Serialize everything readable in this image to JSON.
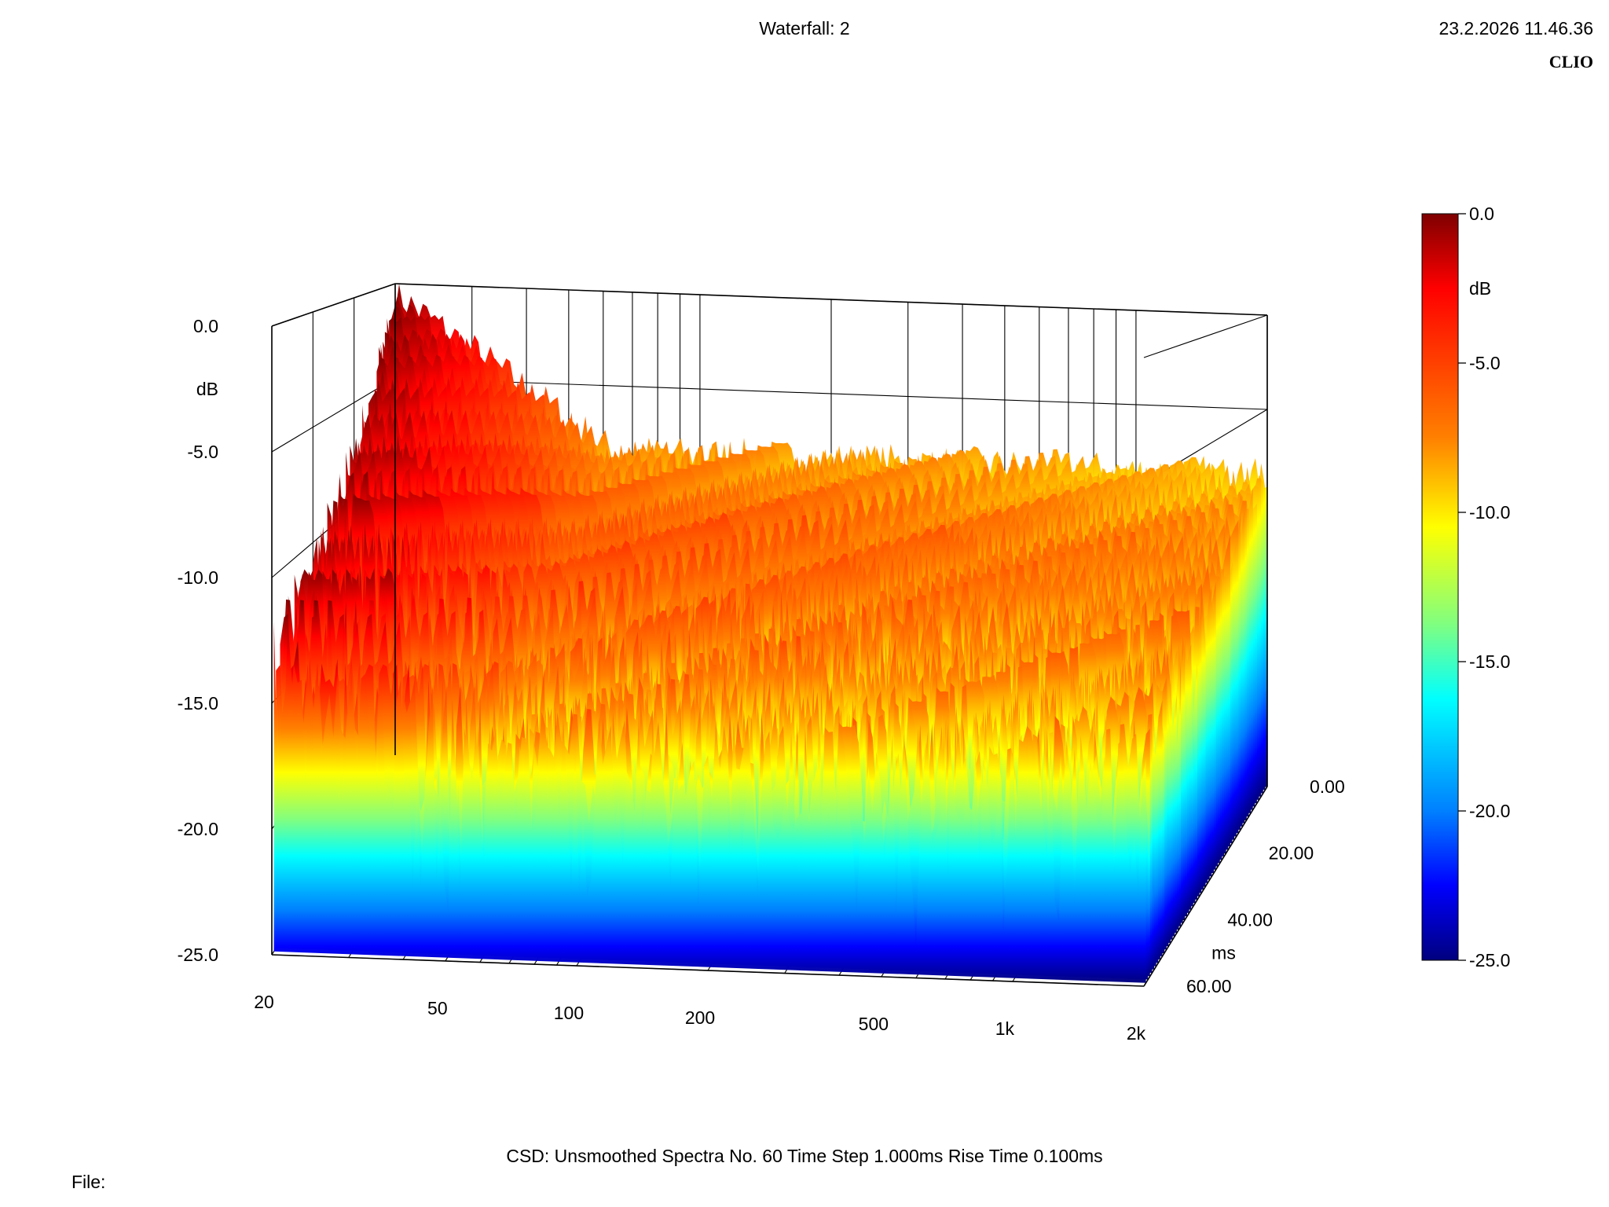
{
  "header": {
    "title": "Waterfall: 2",
    "timestamp": "23.2.2026 11.46.36",
    "brand": "CLIO"
  },
  "footer": {
    "settings": "CSD:   Unsmoothed   Spectra No. 60   Time Step 1.000ms   Rise Time 0.100ms",
    "file_label": "File:"
  },
  "chart_data": {
    "type": "waterfall",
    "title": "Waterfall: 2",
    "x_axis": {
      "label": "",
      "scale": "log",
      "range": [
        20,
        2000
      ],
      "ticks": [
        "20",
        "50",
        "100",
        "200",
        "500",
        "1k",
        "2k"
      ],
      "tick_values": [
        20,
        50,
        100,
        200,
        500,
        1000,
        2000
      ]
    },
    "y_axis": {
      "label": "dB",
      "range": [
        -25,
        0
      ],
      "ticks": [
        "0.0",
        "-5.0",
        "-10.0",
        "-15.0",
        "-20.0",
        "-25.0"
      ],
      "tick_values": [
        0,
        -5,
        -10,
        -15,
        -20,
        -25
      ]
    },
    "z_axis": {
      "label": "ms",
      "range": [
        0,
        60
      ],
      "ticks": [
        "0.00",
        "20.00",
        "40.00",
        "60.00"
      ],
      "tick_values": [
        0,
        20,
        40,
        60
      ]
    },
    "colorbar": {
      "label": "dB",
      "range": [
        -25,
        0
      ],
      "ticks": [
        "0.0",
        "-5.0",
        "-10.0",
        "-15.0",
        "-20.0",
        "-25.0"
      ],
      "tick_values": [
        0,
        -5,
        -10,
        -15,
        -20,
        -25
      ]
    },
    "spectra_count": 60,
    "time_step_ms": 1.0,
    "rise_time_ms": 0.1,
    "smoothing": "Unsmoothed",
    "colors": [
      "#7f0000",
      "#ff0000",
      "#ff8000",
      "#ffff00",
      "#80ff80",
      "#00ffff",
      "#0080ff",
      "#0000ff",
      "#00007f"
    ],
    "grid": true
  }
}
